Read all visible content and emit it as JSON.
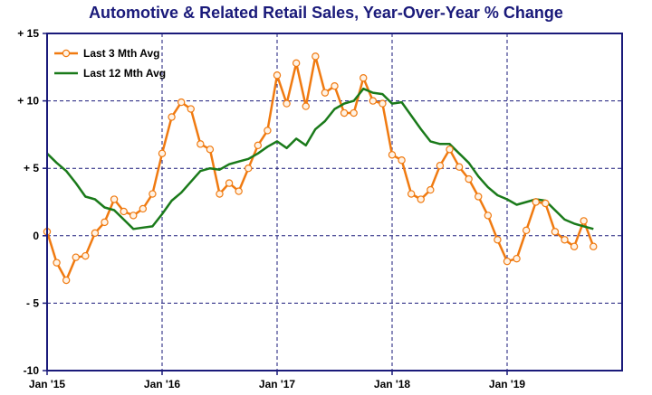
{
  "chart_data": {
    "type": "line",
    "title": "Automotive & Related Retail Sales, Year-Over-Year % Change",
    "ylim": [
      -10,
      15
    ],
    "y_ticks": [
      15,
      10,
      5,
      0,
      -5,
      -10
    ],
    "y_tick_labels": [
      "+ 15",
      "+ 10",
      "+ 5",
      "0",
      "- 5",
      "-10"
    ],
    "x_range": [
      "2015-01",
      "2019-12"
    ],
    "x_ticks": [
      "2015-01",
      "2016-01",
      "2017-01",
      "2018-01",
      "2019-01"
    ],
    "x_tick_labels": [
      "Jan '15",
      "Jan '16",
      "Jan '17",
      "Jan '18",
      "Jan '19"
    ],
    "grid": true,
    "legend_position": "top-left",
    "series": [
      {
        "name": "Last 3 Mth Avg",
        "color": "#f07a10",
        "marker": "circle",
        "x": [
          "2015-01",
          "2015-02",
          "2015-03",
          "2015-04",
          "2015-05",
          "2015-06",
          "2015-07",
          "2015-08",
          "2015-09",
          "2015-10",
          "2015-11",
          "2015-12",
          "2016-01",
          "2016-02",
          "2016-03",
          "2016-04",
          "2016-05",
          "2016-06",
          "2016-07",
          "2016-08",
          "2016-09",
          "2016-10",
          "2016-11",
          "2016-12",
          "2017-01",
          "2017-02",
          "2017-03",
          "2017-04",
          "2017-05",
          "2017-06",
          "2017-07",
          "2017-08",
          "2017-09",
          "2017-10",
          "2017-11",
          "2017-12",
          "2018-01",
          "2018-02",
          "2018-03",
          "2018-04",
          "2018-05",
          "2018-06",
          "2018-07",
          "2018-08",
          "2018-09",
          "2018-10",
          "2018-11",
          "2018-12",
          "2019-01",
          "2019-02",
          "2019-03",
          "2019-04",
          "2019-05",
          "2019-06",
          "2019-07",
          "2019-08",
          "2019-09",
          "2019-10"
        ],
        "y": [
          0.3,
          -2.0,
          -3.3,
          -1.6,
          -1.5,
          0.2,
          1.0,
          2.7,
          1.8,
          1.5,
          2.0,
          3.1,
          6.1,
          8.8,
          9.9,
          9.4,
          6.8,
          6.4,
          3.1,
          3.9,
          3.3,
          5.0,
          6.7,
          7.8,
          11.9,
          9.8,
          12.8,
          9.6,
          13.3,
          10.6,
          11.1,
          9.1,
          9.1,
          11.7,
          10.0,
          9.8,
          6.0,
          5.6,
          3.1,
          2.7,
          3.4,
          5.2,
          6.4,
          5.1,
          4.2,
          2.9,
          1.5,
          -0.3,
          -1.9,
          -1.7,
          0.4,
          2.5,
          2.4,
          0.3,
          -0.3,
          -0.8,
          1.1,
          -0.8
        ]
      },
      {
        "name": "Last 12 Mth Avg",
        "color": "#1a7a1a",
        "marker": "none",
        "x": [
          "2015-01",
          "2015-02",
          "2015-03",
          "2015-04",
          "2015-05",
          "2015-06",
          "2015-07",
          "2015-08",
          "2015-09",
          "2015-10",
          "2015-11",
          "2015-12",
          "2016-01",
          "2016-02",
          "2016-03",
          "2016-04",
          "2016-05",
          "2016-06",
          "2016-07",
          "2016-08",
          "2016-09",
          "2016-10",
          "2016-11",
          "2016-12",
          "2017-01",
          "2017-02",
          "2017-03",
          "2017-04",
          "2017-05",
          "2017-06",
          "2017-07",
          "2017-08",
          "2017-09",
          "2017-10",
          "2017-11",
          "2017-12",
          "2018-01",
          "2018-02",
          "2018-03",
          "2018-04",
          "2018-05",
          "2018-06",
          "2018-07",
          "2018-08",
          "2018-09",
          "2018-10",
          "2018-11",
          "2018-12",
          "2019-01",
          "2019-02",
          "2019-03",
          "2019-04",
          "2019-05",
          "2019-06",
          "2019-07",
          "2019-08",
          "2019-09",
          "2019-10"
        ],
        "y": [
          6.1,
          5.4,
          4.8,
          3.9,
          2.9,
          2.7,
          2.1,
          1.9,
          1.2,
          0.5,
          0.6,
          0.7,
          1.6,
          2.6,
          3.2,
          4.0,
          4.8,
          5.0,
          4.9,
          5.3,
          5.5,
          5.7,
          6.1,
          6.6,
          7.0,
          6.5,
          7.2,
          6.7,
          7.9,
          8.5,
          9.4,
          9.8,
          10.0,
          10.9,
          10.6,
          10.5,
          9.8,
          9.9,
          8.9,
          7.9,
          7.0,
          6.8,
          6.8,
          6.1,
          5.4,
          4.4,
          3.6,
          3.0,
          2.7,
          2.3,
          2.5,
          2.7,
          2.6,
          1.9,
          1.2,
          0.9,
          0.7,
          0.5
        ]
      }
    ]
  }
}
